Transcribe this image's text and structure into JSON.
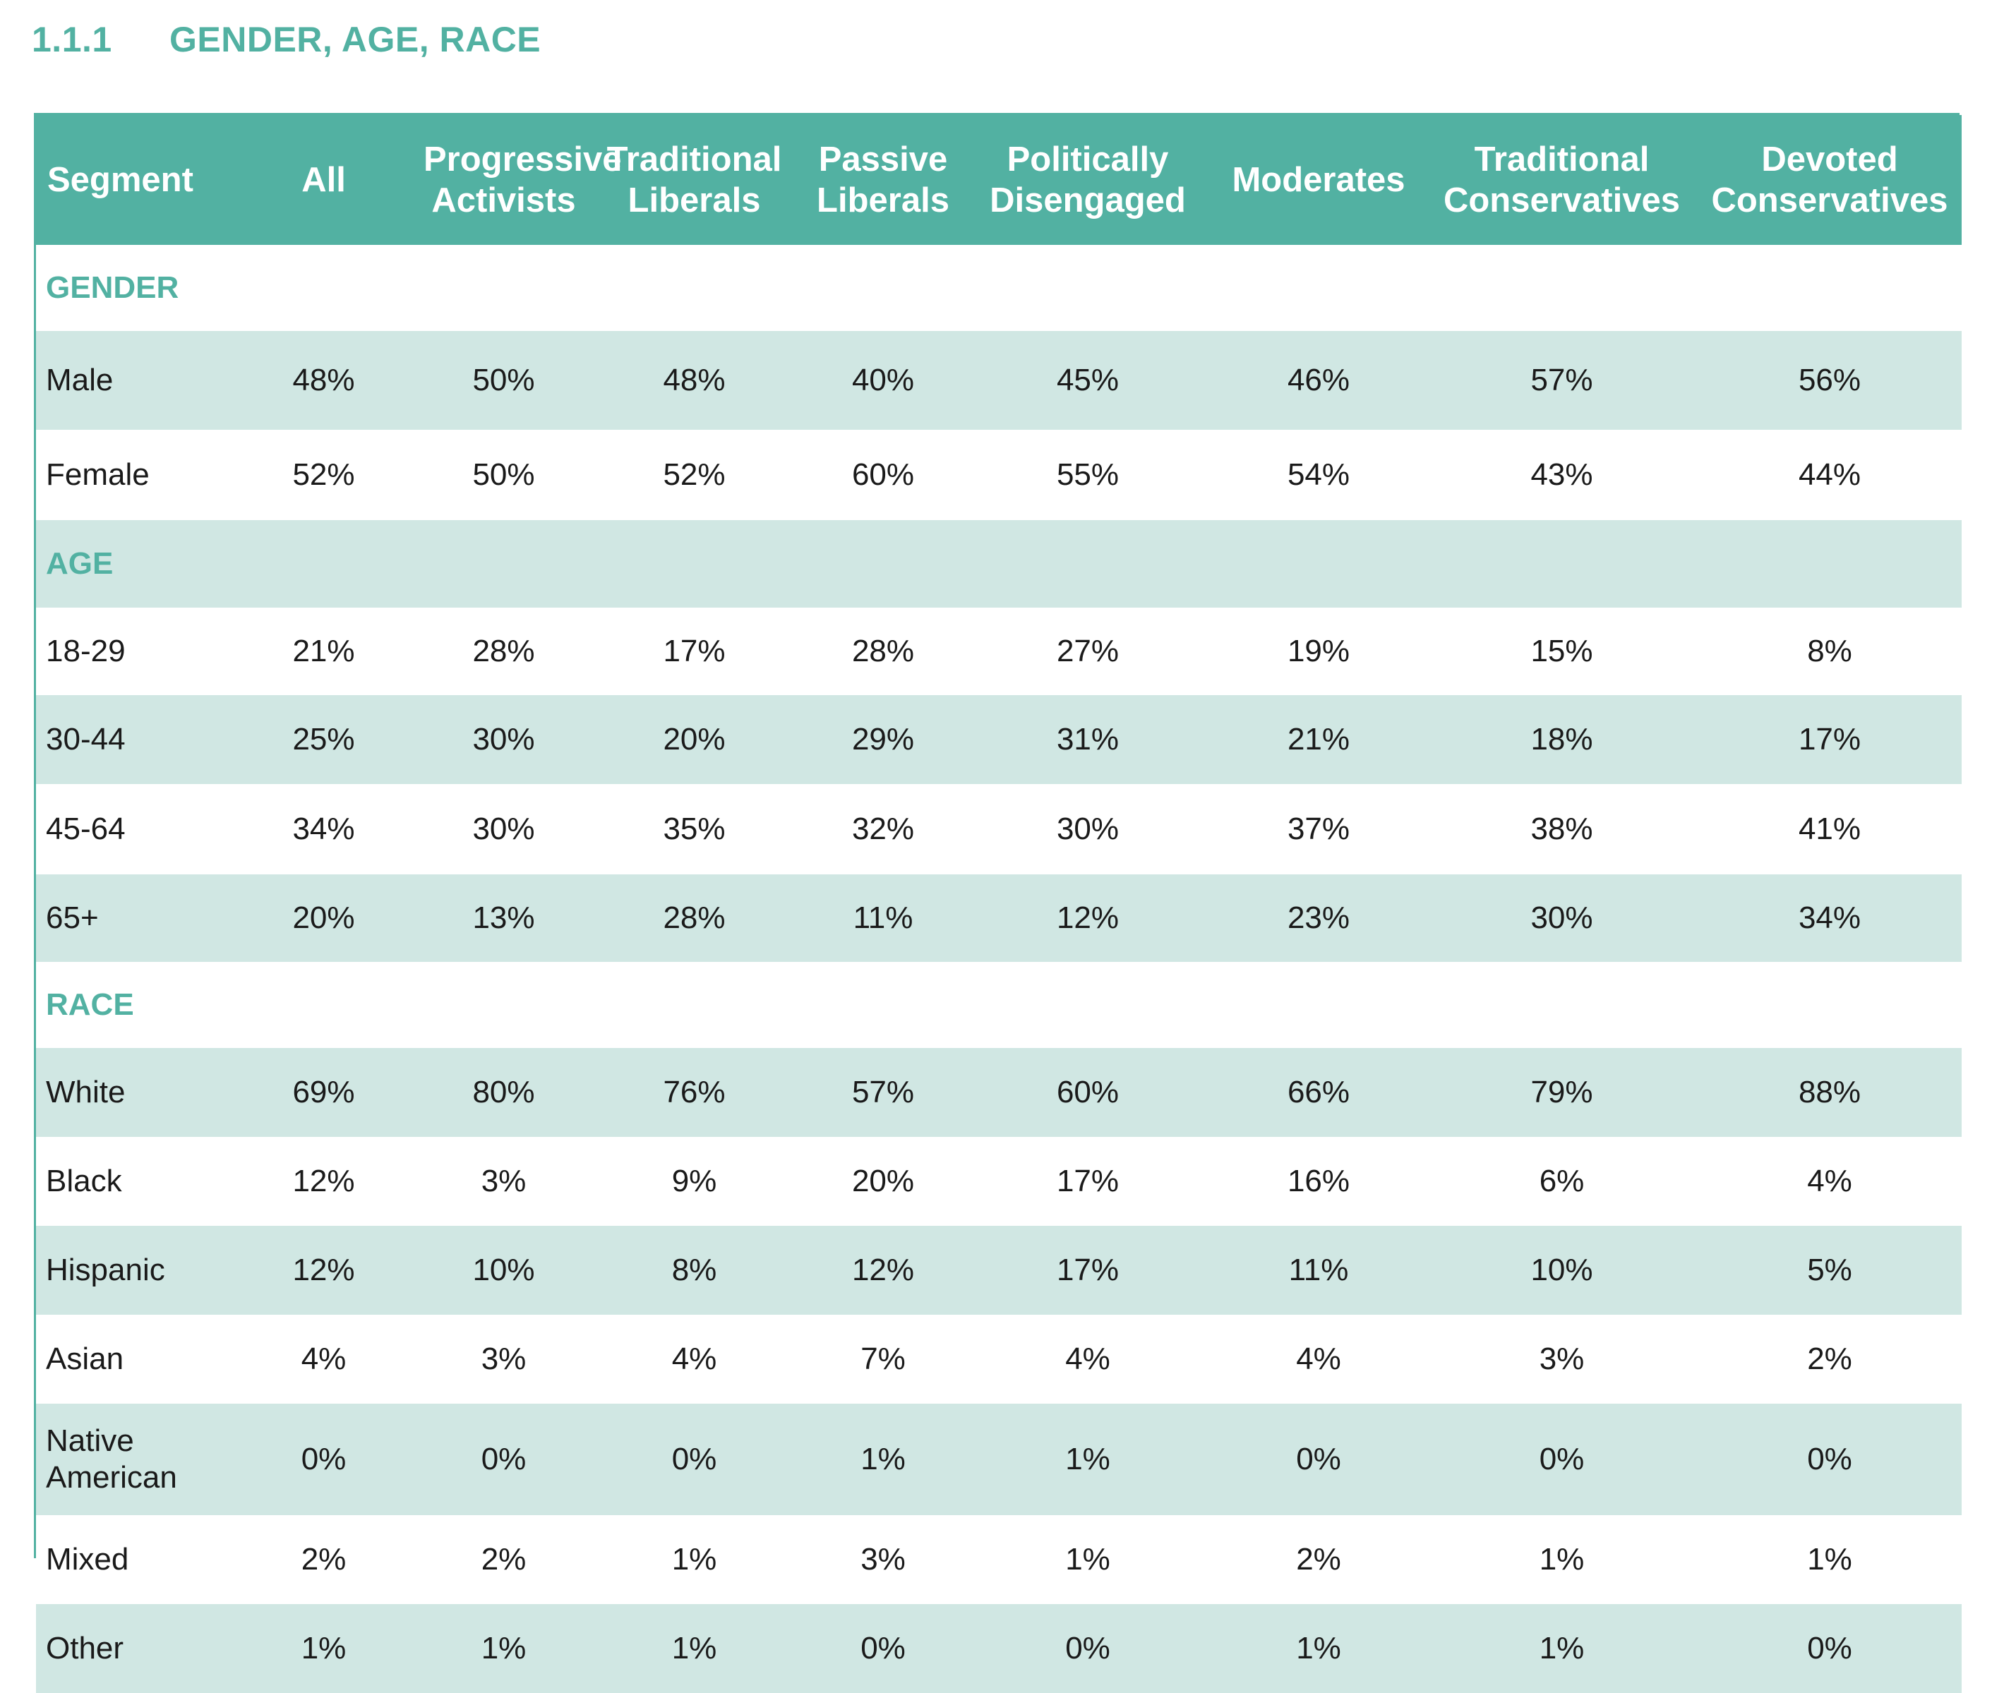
{
  "heading": {
    "number": "1.1.1",
    "title": "GENDER, AGE, RACE"
  },
  "colors": {
    "accent": "#52b1a2",
    "row_shade": "#d0e7e3"
  },
  "table": {
    "columns": [
      "Segment",
      "All",
      "Progressive Activists",
      "Traditional Liberals",
      "Passive Liberals",
      "Politically Disengaged",
      "Moderates",
      "Traditional Conservatives",
      "Devoted Conservatives"
    ],
    "sections": [
      {
        "title": "GENDER",
        "rows": [
          {
            "label": "Male",
            "values": [
              "48%",
              "50%",
              "48%",
              "40%",
              "45%",
              "46%",
              "57%",
              "56%"
            ]
          },
          {
            "label": "Female",
            "values": [
              "52%",
              "50%",
              "52%",
              "60%",
              "55%",
              "54%",
              "43%",
              "44%"
            ]
          }
        ]
      },
      {
        "title": "AGE",
        "rows": [
          {
            "label": "18-29",
            "values": [
              "21%",
              "28%",
              "17%",
              "28%",
              "27%",
              "19%",
              "15%",
              "8%"
            ]
          },
          {
            "label": "30-44",
            "values": [
              "25%",
              "30%",
              "20%",
              "29%",
              "31%",
              "21%",
              "18%",
              "17%"
            ]
          },
          {
            "label": "45-64",
            "values": [
              "34%",
              "30%",
              "35%",
              "32%",
              "30%",
              "37%",
              "38%",
              "41%"
            ]
          },
          {
            "label": "65+",
            "values": [
              "20%",
              "13%",
              "28%",
              "11%",
              "12%",
              "23%",
              "30%",
              "34%"
            ]
          }
        ]
      },
      {
        "title": "RACE",
        "rows": [
          {
            "label": "White",
            "values": [
              "69%",
              "80%",
              "76%",
              "57%",
              "60%",
              "66%",
              "79%",
              "88%"
            ]
          },
          {
            "label": "Black",
            "values": [
              "12%",
              "3%",
              "9%",
              "20%",
              "17%",
              "16%",
              "6%",
              "4%"
            ]
          },
          {
            "label": "Hispanic",
            "values": [
              "12%",
              "10%",
              "8%",
              "12%",
              "17%",
              "11%",
              "10%",
              "5%"
            ]
          },
          {
            "label": "Asian",
            "values": [
              "4%",
              "3%",
              "4%",
              "7%",
              "4%",
              "4%",
              "3%",
              "2%"
            ]
          },
          {
            "label": "Native American",
            "values": [
              "0%",
              "0%",
              "0%",
              "1%",
              "1%",
              "0%",
              "0%",
              "0%"
            ]
          },
          {
            "label": "Mixed",
            "values": [
              "2%",
              "2%",
              "1%",
              "3%",
              "1%",
              "2%",
              "1%",
              "1%"
            ]
          },
          {
            "label": "Other",
            "values": [
              "1%",
              "1%",
              "1%",
              "0%",
              "0%",
              "1%",
              "1%",
              "0%"
            ]
          }
        ]
      }
    ]
  }
}
